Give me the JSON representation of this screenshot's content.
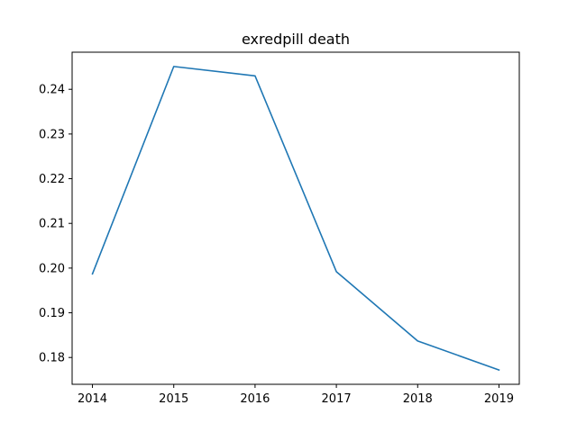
{
  "chart_data": {
    "type": "line",
    "title": "exredpill death",
    "xlabel": "",
    "ylabel": "",
    "x": [
      2014,
      2015,
      2016,
      2017,
      2018,
      2019
    ],
    "x_tick_labels": [
      "2014",
      "2015",
      "2016",
      "2017",
      "2018",
      "2019"
    ],
    "series": [
      {
        "values": [
          0.1987,
          0.2451,
          0.243,
          0.1992,
          0.1837,
          0.1772
        ],
        "color": "#1f77b4"
      }
    ],
    "xlim": [
      2013.75,
      2019.25
    ],
    "ylim": [
      0.174,
      0.2483
    ],
    "y_ticks": [
      0.18,
      0.19,
      0.2,
      0.21,
      0.22,
      0.23,
      0.24
    ],
    "y_tick_labels": [
      "0.18",
      "0.19",
      "0.20",
      "0.21",
      "0.22",
      "0.23",
      "0.24"
    ],
    "grid": false,
    "legend": "none"
  }
}
